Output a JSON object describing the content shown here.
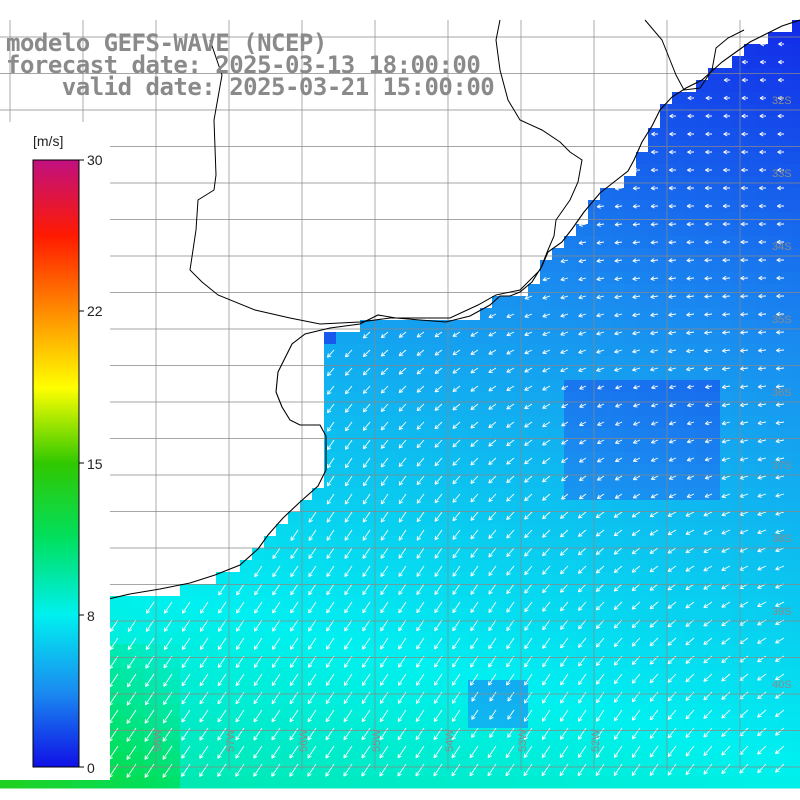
{
  "title": {
    "line1": "modelo GEFS-WAVE (NCEP)",
    "line2": "forecast date: 2025-03-13 18:00:00",
    "line3": "    valid date: 2025-03-21 15:00:00"
  },
  "colorbar": {
    "unit": "[m/s]",
    "ticks": [
      {
        "label": "30",
        "value": 30
      },
      {
        "label": "22",
        "value": 22
      },
      {
        "label": "15",
        "value": 15
      },
      {
        "label": "8",
        "value": 8
      },
      {
        "label": "0",
        "value": 0
      }
    ],
    "min": 0,
    "max": 30,
    "stops": [
      "#1010e6",
      "#1a8cf0",
      "#00f0f0",
      "#00e060",
      "#30c800",
      "#ffff00",
      "#ff8c00",
      "#ff1a00",
      "#c01080"
    ]
  },
  "lat_labels": [
    "32S",
    "33S",
    "34S",
    "35S",
    "36S",
    "37S",
    "38S",
    "39S",
    "40S"
  ],
  "lon_labels": [
    "59W",
    "58W",
    "57W",
    "56W",
    "55W",
    "54W",
    "53W",
    "52W"
  ],
  "colors": {
    "land": "#ffffff",
    "coast": "#000000",
    "grid": "#888888",
    "arrow": "#ffffff",
    "label": "#8a8a8a"
  }
}
